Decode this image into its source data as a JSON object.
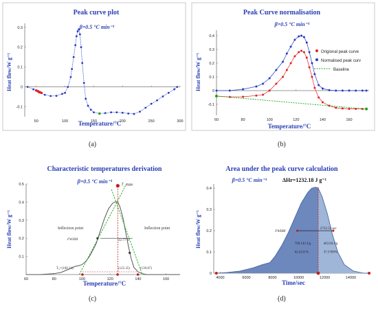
{
  "chart_data": [
    {
      "id": "a",
      "type": "scatter",
      "title": "Peak curve plot",
      "subtitle": "β=0.5 °C min⁻¹",
      "xlabel": "Temperature/°C",
      "ylabel": "Heat flow/W g⁻¹",
      "xlim": [
        30,
        300
      ],
      "ylim": [
        -0.15,
        0.32
      ],
      "xticks": [
        50,
        100,
        150,
        200,
        250,
        300
      ],
      "yticks": [
        -0.1,
        0,
        0.1,
        0.2,
        0.3
      ],
      "grid": false,
      "series": [
        {
          "color": "#2339c7",
          "x": [
            35,
            45,
            55,
            65,
            75,
            85,
            95,
            100,
            105,
            110,
            112,
            115,
            118,
            120,
            122,
            124,
            126,
            128,
            130,
            133,
            136,
            140,
            145,
            150,
            160,
            170,
            180,
            190,
            200,
            210,
            220,
            230,
            240,
            250,
            260,
            270,
            280,
            290,
            295
          ],
          "y": [
            0,
            -0.012,
            -0.028,
            -0.04,
            -0.046,
            -0.045,
            -0.035,
            -0.03,
            0.0,
            0.05,
            0.09,
            0.15,
            0.21,
            0.255,
            0.28,
            0.29,
            0.265,
            0.2,
            0.12,
            0.02,
            -0.06,
            -0.095,
            -0.115,
            -0.128,
            -0.134,
            -0.132,
            -0.128,
            -0.128,
            -0.13,
            -0.134,
            -0.136,
            -0.125,
            -0.105,
            -0.085,
            -0.068,
            -0.048,
            -0.03,
            -0.012,
            0.0
          ]
        },
        {
          "color": "#e02020",
          "x": [
            50,
            53,
            56,
            59
          ],
          "y": [
            -0.018,
            -0.022,
            -0.026,
            -0.03
          ]
        },
        {
          "color": "#18a818",
          "x": [
            160
          ],
          "y": [
            -0.134
          ]
        }
      ]
    },
    {
      "id": "b",
      "type": "scatter",
      "title": "Peak Curve normalisation",
      "subtitle": "β=0.5 °C min⁻¹",
      "xlabel": "Temperature/°C",
      "ylabel": "Heat flow/W g⁻¹",
      "xlim": [
        60,
        175
      ],
      "ylim": [
        -0.18,
        0.44
      ],
      "xticks": [
        60,
        80,
        100,
        120,
        140,
        160
      ],
      "yticks": [
        -0.1,
        0,
        0.1,
        0.2,
        0.3,
        0.4
      ],
      "grid": false,
      "legend": "right",
      "series": [
        {
          "name": "Origional peak curve",
          "color": "#e02020",
          "x": [
            60,
            70,
            80,
            90,
            95,
            100,
            105,
            110,
            113,
            116,
            119,
            122,
            124,
            126,
            128,
            130,
            132,
            134,
            137,
            140,
            145,
            150,
            155,
            160,
            165,
            170,
            173
          ],
          "y": [
            -0.04,
            -0.046,
            -0.045,
            -0.036,
            -0.03,
            0.0,
            0.05,
            0.1,
            0.15,
            0.2,
            0.25,
            0.28,
            0.29,
            0.28,
            0.24,
            0.17,
            0.1,
            0.02,
            -0.05,
            -0.085,
            -0.11,
            -0.125,
            -0.13,
            -0.133,
            -0.133,
            -0.134,
            -0.134
          ]
        },
        {
          "name": "Normalised peak curv",
          "color": "#2339c7",
          "x": [
            60,
            70,
            80,
            90,
            95,
            100,
            105,
            110,
            113,
            116,
            119,
            122,
            124,
            126,
            128,
            130,
            132,
            134,
            137,
            140,
            145,
            150,
            155,
            160,
            165,
            170,
            173
          ],
          "y": [
            0.0,
            0.0,
            0.01,
            0.03,
            0.05,
            0.09,
            0.15,
            0.21,
            0.27,
            0.32,
            0.37,
            0.395,
            0.4,
            0.39,
            0.35,
            0.28,
            0.2,
            0.12,
            0.04,
            0.015,
            0.003,
            0.0,
            0.0,
            0.0,
            0.0,
            0.0,
            0.0
          ]
        },
        {
          "name": "Baseline",
          "color": "#18a818",
          "dashed": true,
          "x": [
            60,
            173
          ],
          "y": [
            -0.04,
            -0.134
          ]
        }
      ]
    },
    {
      "id": "c",
      "type": "line",
      "title": "Characteristic temperatures derivation",
      "subtitle": "β=0.5 °C min⁻¹",
      "xlabel": "Temperature/°C",
      "ylabel": "Heat flow/W g⁻¹",
      "xlim": [
        60,
        170
      ],
      "ylim": [
        0,
        0.5
      ],
      "xticks": [
        60,
        80,
        100,
        120,
        140,
        160
      ],
      "yticks": [
        0.1,
        0.2,
        0.3,
        0.4,
        0.5
      ],
      "grid": false,
      "series": [
        {
          "color": "#555555",
          "x": [
            60,
            70,
            80,
            85,
            90,
            95,
            98,
            100,
            103,
            106,
            110,
            113,
            116,
            119,
            122,
            124,
            125.5,
            127,
            129,
            131,
            133,
            135,
            137,
            140,
            143,
            146,
            150,
            160,
            170
          ],
          "y": [
            0.0,
            0.0,
            0.005,
            0.012,
            0.028,
            0.045,
            0.05,
            0.055,
            0.075,
            0.11,
            0.17,
            0.24,
            0.31,
            0.365,
            0.395,
            0.402,
            0.4,
            0.375,
            0.32,
            0.24,
            0.16,
            0.09,
            0.04,
            0.015,
            0.005,
            0.0,
            0.0,
            0.0,
            0.0
          ]
        }
      ],
      "tangents": [
        {
          "color": "#18a818",
          "x": [
            98,
            131
          ],
          "y": [
            0.0,
            0.49
          ]
        },
        {
          "color": "#18a818",
          "x": [
            121,
            143
          ],
          "y": [
            0.47,
            0.0
          ]
        }
      ],
      "markers": [
        {
          "label": "T_max",
          "x": 125.5,
          "y": 0.402,
          "color": "#c02020"
        }
      ],
      "annotations": {
        "inflection_left": "Inflection point",
        "inflection_right": "Inflection point",
        "fwhm": "FWHM",
        "width": "22.77 K",
        "t_left": "T₀=(100.24)",
        "t_mid": "(125.35)",
        "t_right": "(139.87)"
      }
    },
    {
      "id": "d",
      "type": "area",
      "title": "Area under the peak curve calculation",
      "subtitle": "β=0.5 °C min⁻¹",
      "annotation": "ΔHr=1232.18 J g⁻¹",
      "xlabel": "Time/sec",
      "ylabel": "Heat flow/W g⁻¹",
      "xlim": [
        3500,
        15500
      ],
      "ylim": [
        0,
        0.42
      ],
      "xticks": [
        4000,
        6000,
        8000,
        10000,
        12000,
        14000
      ],
      "yticks": [
        0.0,
        0.1,
        0.2,
        0.3,
        0.4
      ],
      "grid": false,
      "series": [
        {
          "color": "#3b5fa0",
          "x": [
            3700,
            4500,
            5500,
            6500,
            7200,
            7800,
            8200,
            8700,
            9200,
            9700,
            10200,
            10700,
            11000,
            11300,
            11500,
            11800,
            12200,
            12600,
            13000,
            13500,
            14200,
            15000,
            15400
          ],
          "y": [
            0.0,
            0.003,
            0.01,
            0.025,
            0.04,
            0.05,
            0.08,
            0.13,
            0.19,
            0.26,
            0.33,
            0.38,
            0.4,
            0.405,
            0.4,
            0.36,
            0.28,
            0.18,
            0.1,
            0.04,
            0.01,
            0.0,
            0.0
          ]
        }
      ],
      "labels": {
        "fwhm": "FWHM",
        "fwhm_value": "2732.52 sec",
        "left_area": "769.143 J/g",
        "left_pct": "62.4211%",
        "right_area": "463.04 J/g",
        "right_pct": "37.5789%"
      }
    }
  ],
  "captions": {
    "a": "(a)",
    "b": "(b)",
    "c": "(c)",
    "d": "(d)"
  }
}
